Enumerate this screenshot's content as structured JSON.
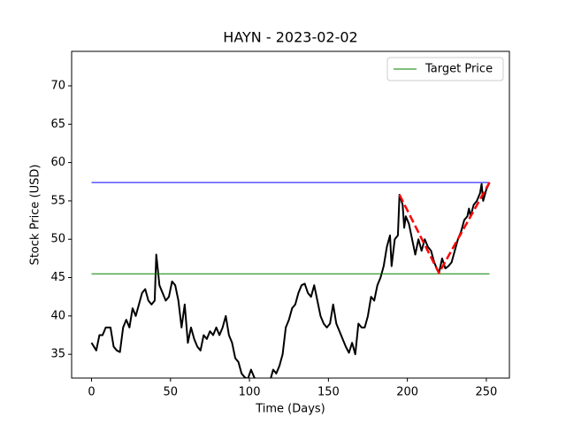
{
  "chart_data": {
    "type": "line",
    "title": "HAYN - 2023-02-02",
    "x_label": "Time (Days)",
    "y_label": "Stock Price (USD)",
    "xlim": [
      -12.6,
      264.6
    ],
    "ylim": [
      31.9,
      74.5
    ],
    "xticks": [
      0,
      50,
      100,
      150,
      200,
      250
    ],
    "yticks": [
      35,
      40,
      45,
      50,
      55,
      60,
      65,
      70
    ],
    "legend": "upper right",
    "series": [
      {
        "color": "#000000",
        "x": [
          0,
          3,
          5,
          7,
          9,
          12,
          14,
          16,
          18,
          20,
          22,
          24,
          26,
          28,
          30,
          32,
          34,
          36,
          38,
          40,
          41,
          43,
          45,
          47,
          49,
          51,
          53,
          55,
          57,
          59,
          61,
          63,
          65,
          67,
          69,
          71,
          73,
          75,
          77,
          79,
          81,
          83,
          85,
          87,
          89,
          91,
          93,
          95,
          97,
          99,
          101,
          103,
          105,
          107,
          110,
          113,
          115,
          117,
          119,
          121,
          123,
          125,
          127,
          129,
          131,
          133,
          135,
          137,
          139,
          141,
          143,
          145,
          147,
          149,
          151,
          153,
          155,
          157,
          159,
          161,
          163,
          165,
          167,
          169,
          171,
          173,
          175,
          177,
          179,
          181,
          183,
          185,
          187,
          189,
          190,
          192,
          194,
          195,
          197,
          198,
          199,
          201,
          203,
          205,
          207,
          209,
          211,
          213,
          215,
          217,
          219,
          220,
          222,
          224,
          226,
          228,
          230,
          232,
          234,
          236,
          238,
          239,
          240,
          242,
          244,
          246,
          247,
          248,
          250,
          252
        ],
        "values": [
          36.5,
          35.5,
          37.5,
          37.5,
          38.5,
          38.5,
          36.0,
          35.5,
          35.3,
          38.5,
          39.5,
          38.5,
          41,
          40,
          41.5,
          43,
          43.5,
          42,
          41.5,
          42,
          48,
          44,
          43,
          42,
          42.5,
          44.5,
          44,
          42,
          38.5,
          41.5,
          36.5,
          38.5,
          37,
          36,
          35.5,
          37.5,
          37,
          38,
          37.5,
          38.5,
          37.5,
          38.5,
          40,
          37.5,
          36.5,
          34.5,
          34,
          32.5,
          32,
          31.8,
          33,
          32,
          31.5,
          30,
          29,
          31.5,
          33,
          32.5,
          33.5,
          35,
          38.5,
          39.5,
          41,
          41.5,
          43,
          44,
          44.2,
          43,
          42.5,
          44,
          42,
          40,
          39,
          38.5,
          39,
          41.5,
          39,
          38,
          37,
          36,
          35.2,
          36.5,
          35,
          39,
          38.5,
          38.5,
          40,
          42.5,
          42,
          44,
          45,
          46.5,
          49,
          50.5,
          46.5,
          50,
          50.5,
          55.8,
          54.5,
          51.5,
          53,
          52,
          50,
          48,
          50,
          48.5,
          50,
          49,
          48.5,
          47,
          46,
          45.6,
          47.5,
          46.2,
          46.5,
          47,
          48.5,
          50,
          51,
          52.5,
          53,
          54,
          53,
          54.5,
          55,
          56,
          57.2,
          55,
          56.5,
          57.4
        ]
      },
      {
        "name": "Target Price",
        "color": "#008000",
        "x": [
          0,
          252
        ],
        "values": [
          45.5,
          45.5
        ]
      },
      {
        "color": "#0000ff",
        "x": [
          0,
          252
        ],
        "values": [
          57.4,
          57.4
        ]
      },
      {
        "color": "#ff0000",
        "dashed": true,
        "x": [
          195,
          220,
          252
        ],
        "values": [
          55.8,
          45.6,
          57.4
        ]
      }
    ]
  }
}
